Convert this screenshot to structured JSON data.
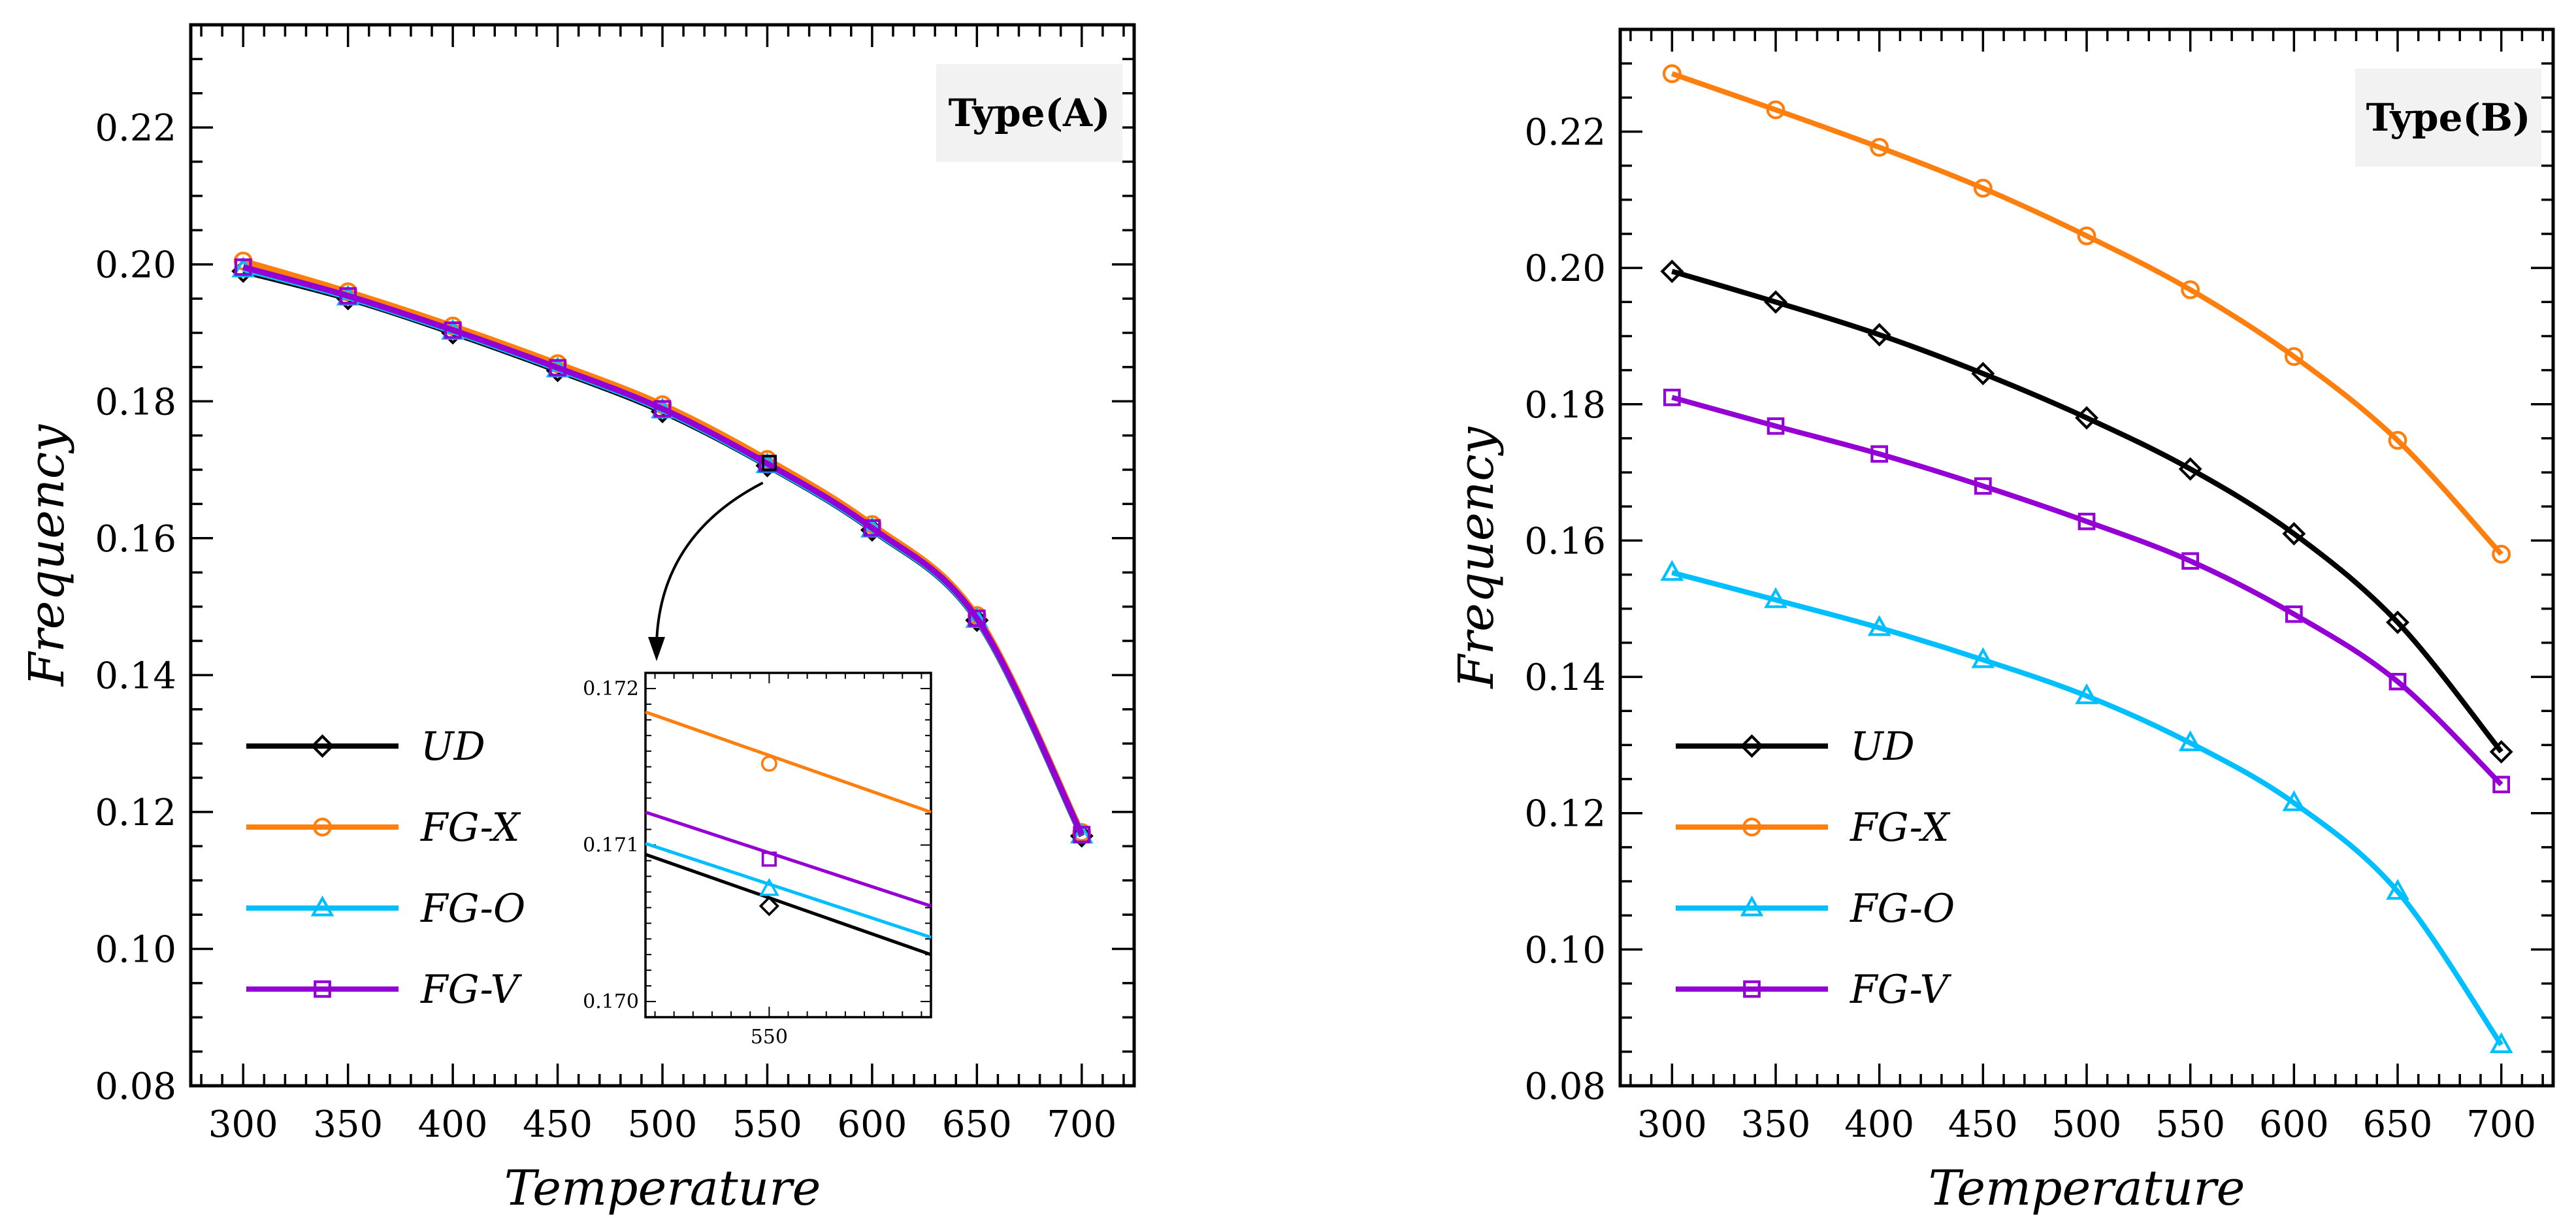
{
  "chart_data": [
    {
      "type": "line",
      "panel_label": "Type(A)",
      "xlabel": "Temperature",
      "ylabel": "Frequency",
      "x": [
        300,
        350,
        400,
        450,
        500,
        550,
        600,
        650,
        700
      ],
      "xlim": [
        275,
        725
      ],
      "ylim": [
        0.08,
        0.235
      ],
      "x_ticks": [
        "300",
        "350",
        "400",
        "450",
        "500",
        "550",
        "600",
        "650",
        "700"
      ],
      "y_ticks": [
        "0.08",
        "0.10",
        "0.12",
        "0.14",
        "0.16",
        "0.18",
        "0.20",
        "0.22"
      ],
      "legend_position": "lower-left",
      "series": [
        {
          "name": "UD",
          "color": "#000000",
          "marker": "diamond",
          "values": [
            0.199,
            0.195,
            0.19,
            0.1845,
            0.1785,
            0.1706,
            0.1612,
            0.148,
            0.1165
          ]
        },
        {
          "name": "FG-X",
          "color": "#ff7f0e",
          "marker": "circle",
          "values": [
            0.2005,
            0.196,
            0.191,
            0.1855,
            0.1795,
            0.1715,
            0.162,
            0.1487,
            0.117
          ]
        },
        {
          "name": "FG-O",
          "color": "#00bfff",
          "marker": "triangle",
          "values": [
            0.1993,
            0.1952,
            0.1902,
            0.1847,
            0.1787,
            0.1707,
            0.1613,
            0.1481,
            0.1166
          ]
        },
        {
          "name": "FG-V",
          "color": "#9400d3",
          "marker": "square",
          "values": [
            0.1996,
            0.1954,
            0.1904,
            0.1849,
            0.1789,
            0.1709,
            0.1615,
            0.1483,
            0.1167
          ]
        }
      ],
      "inset": {
        "zoom_x": [
          548,
          554
        ],
        "zoom_y": [
          0.17,
          0.172
        ],
        "xlim": [
          540,
          570
        ],
        "ylim": [
          0.1699,
          0.1721
        ],
        "x_ticks": [
          "550"
        ],
        "y_ticks": [
          "0.170",
          "0.171",
          "0.172"
        ],
        "series": [
          {
            "name": "UD",
            "color": "#000000",
            "marker": "diamond",
            "line": [
              [
                540,
                0.17094
              ],
              [
                570,
                0.1703
              ]
            ],
            "marker_at": [
              553,
              0.17061
            ]
          },
          {
            "name": "FG-X",
            "color": "#ff7f0e",
            "marker": "circle",
            "line": [
              [
                540,
                0.17185
              ],
              [
                570,
                0.17121
              ]
            ],
            "marker_at": [
              553,
              0.17152
            ]
          },
          {
            "name": "FG-O",
            "color": "#00bfff",
            "marker": "triangle",
            "line": [
              [
                540,
                0.17101
              ],
              [
                570,
                0.17041
              ]
            ],
            "marker_at": [
              553,
              0.17072
            ]
          },
          {
            "name": "FG-V",
            "color": "#9400d3",
            "marker": "square",
            "line": [
              [
                540,
                0.17121
              ],
              [
                570,
                0.17061
              ]
            ],
            "marker_at": [
              553,
              0.17091
            ]
          }
        ]
      }
    },
    {
      "type": "line",
      "panel_label": "Type(B)",
      "xlabel": "Temperature",
      "ylabel": "Frequency",
      "x": [
        300,
        350,
        400,
        450,
        500,
        550,
        600,
        650,
        700
      ],
      "xlim": [
        275,
        725
      ],
      "ylim": [
        0.08,
        0.235
      ],
      "x_ticks": [
        "300",
        "350",
        "400",
        "450",
        "500",
        "550",
        "600",
        "650",
        "700"
      ],
      "y_ticks": [
        "0.08",
        "0.10",
        "0.12",
        "0.14",
        "0.16",
        "0.18",
        "0.20",
        "0.22"
      ],
      "legend_position": "lower-left",
      "series": [
        {
          "name": "UD",
          "color": "#000000",
          "marker": "diamond",
          "values": [
            0.1995,
            0.195,
            0.1902,
            0.1845,
            0.178,
            0.1705,
            0.161,
            0.148,
            0.129
          ]
        },
        {
          "name": "FG-X",
          "color": "#ff7f0e",
          "marker": "circle",
          "values": [
            0.2285,
            0.2232,
            0.2177,
            0.2117,
            0.2047,
            0.1968,
            0.187,
            0.1747,
            0.158
          ]
        },
        {
          "name": "FG-O",
          "color": "#00bfff",
          "marker": "triangle",
          "values": [
            0.1553,
            0.1513,
            0.1472,
            0.1425,
            0.1372,
            0.1303,
            0.1215,
            0.1085,
            0.086
          ]
        },
        {
          "name": "FG-V",
          "color": "#9400d3",
          "marker": "square",
          "values": [
            0.181,
            0.1768,
            0.1727,
            0.168,
            0.1628,
            0.157,
            0.1492,
            0.1393,
            0.1242
          ]
        }
      ]
    }
  ]
}
